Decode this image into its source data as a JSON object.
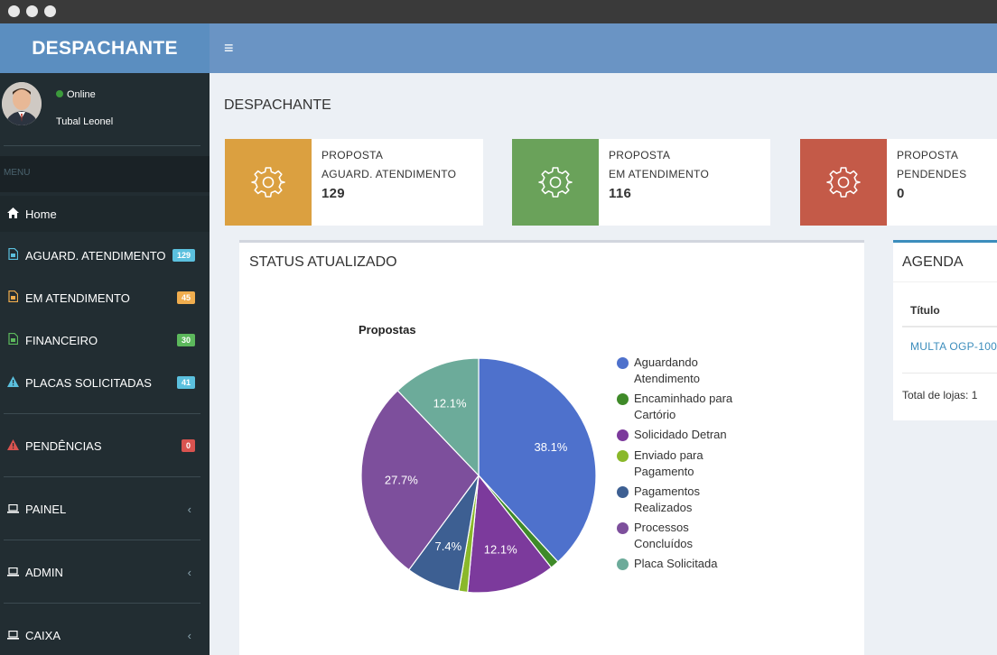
{
  "app": {
    "brand": "DESPACHANTE",
    "menu_icon": "hamburger-icon"
  },
  "user": {
    "status": "Online",
    "name": "Tubal Leonel"
  },
  "sidebar": {
    "header": "MENU",
    "items": [
      {
        "label": "Home",
        "icon": "home-icon"
      },
      {
        "label": "AGUARD. ATENDIMENTO",
        "icon": "document-icon",
        "badge": "129",
        "badge_color": "#5bc0de"
      },
      {
        "label": "EM ATENDIMENTO",
        "icon": "document-icon",
        "badge": "45",
        "badge_color": "#f0ad4e"
      },
      {
        "label": "FINANCEIRO",
        "icon": "document-icon",
        "badge": "30",
        "badge_color": "#5cb85c"
      },
      {
        "label": "PLACAS SOLICITADAS",
        "icon": "warning-icon",
        "badge": "41",
        "badge_color": "#5bc0de"
      },
      {
        "label": "PENDÊNCIAS",
        "icon": "warning-icon",
        "badge": "0",
        "badge_color": "#d9534f"
      },
      {
        "label": "PAINEL",
        "icon": "laptop-icon",
        "chevron": "‹"
      },
      {
        "label": "ADMIN",
        "icon": "laptop-icon",
        "chevron": "‹"
      },
      {
        "label": "CAIXA",
        "icon": "laptop-icon",
        "chevron": "‹"
      }
    ]
  },
  "page": {
    "title": "DESPACHANTE"
  },
  "info_boxes": [
    {
      "line1": "PROPOSTA",
      "line2": "AGUARD. ATENDIMENTO",
      "value": "129",
      "color": "#dba040",
      "icon": "gear-icon"
    },
    {
      "line1": "PROPOSTA",
      "line2": "EM ATENDIMENTO",
      "value": "116",
      "color": "#6aa25a",
      "icon": "gear-icon"
    },
    {
      "line1": "PROPOSTA",
      "line2": "PENDENDES",
      "value": "0",
      "color": "#c45a48",
      "icon": "gear-icon"
    }
  ],
  "status_panel": {
    "title": "STATUS ATUALIZADO"
  },
  "chart_data": {
    "type": "pie",
    "title": "Propostas",
    "series": [
      {
        "name": "Aguardando Atendimento",
        "value": 38.1,
        "label": "38.1%",
        "color": "#4e71cc"
      },
      {
        "name": "Encaminhado para Cartório",
        "value": 1.2,
        "label": "",
        "color": "#3f8a29"
      },
      {
        "name": "Solicidado Detran",
        "value": 12.1,
        "label": "12.1%",
        "color": "#7c3a9c"
      },
      {
        "name": "Enviado para Pagamento",
        "value": 1.2,
        "label": "",
        "color": "#8ab82a"
      },
      {
        "name": "Pagamentos Realizados",
        "value": 7.4,
        "label": "7.4%",
        "color": "#3d5f92"
      },
      {
        "name": "Processos Concluídos",
        "value": 27.7,
        "label": "27.7%",
        "color": "#7d4f9c"
      },
      {
        "name": "Placa Solicitada",
        "value": 12.1,
        "label": "12.1%",
        "color": "#6cab9a"
      }
    ],
    "legend": [
      [
        "Aguardando",
        "Atendimento"
      ],
      [
        "Encaminhado para",
        "Cartório"
      ],
      [
        "Solicidado Detran"
      ],
      [
        "Enviado para",
        "Pagamento"
      ],
      [
        "Pagamentos",
        "Realizados"
      ],
      [
        "Processos",
        "Concluídos"
      ],
      [
        "Placa Solicitada"
      ]
    ],
    "legend_position": "right"
  },
  "agenda": {
    "title": "AGENDA",
    "column": "Título",
    "row": "MULTA OGP-100",
    "footer": "Total de lojas: 1"
  }
}
